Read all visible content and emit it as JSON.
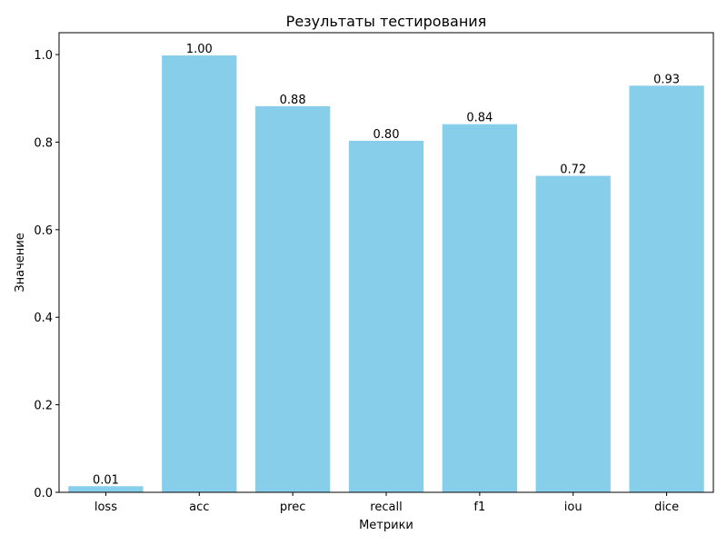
{
  "chart_data": {
    "type": "bar",
    "title": "Результаты тестирования",
    "xlabel": "Метрики",
    "ylabel": "Значение",
    "categories": [
      "loss",
      "acc",
      "prec",
      "recall",
      "f1",
      "iou",
      "dice"
    ],
    "values": [
      0.014,
      0.998,
      0.882,
      0.803,
      0.841,
      0.723,
      0.929
    ],
    "data_labels": [
      "0.01",
      "1.00",
      "0.88",
      "0.80",
      "0.84",
      "0.72",
      "0.93"
    ],
    "ylim": [
      0,
      1.05
    ],
    "yticks": [
      0.0,
      0.2,
      0.4,
      0.6,
      0.8,
      1.0
    ],
    "ytick_labels": [
      "0.0",
      "0.2",
      "0.4",
      "0.6",
      "0.8",
      "1.0"
    ],
    "grid": false,
    "bar_color": "#87ceeb"
  }
}
